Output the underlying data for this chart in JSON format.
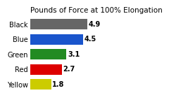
{
  "title": "Pounds of Force at 100% Elongation",
  "categories": [
    "Yellow",
    "Red",
    "Green",
    "Blue",
    "Black"
  ],
  "values": [
    1.8,
    2.7,
    3.1,
    4.5,
    4.9
  ],
  "bar_colors": [
    "#cccc00",
    "#dd0000",
    "#228B22",
    "#1a55cc",
    "#666666"
  ],
  "bar_labels": [
    "1.8",
    "2.7",
    "3.1",
    "4.5",
    "4.9"
  ],
  "xlim": [
    0,
    6.5
  ],
  "title_fontsize": 7.5,
  "label_fontsize": 7,
  "tick_fontsize": 7,
  "background_color": "#ffffff",
  "plot_bg_color": "#ffffff",
  "grid_color": "#cccccc",
  "bar_height": 0.7
}
